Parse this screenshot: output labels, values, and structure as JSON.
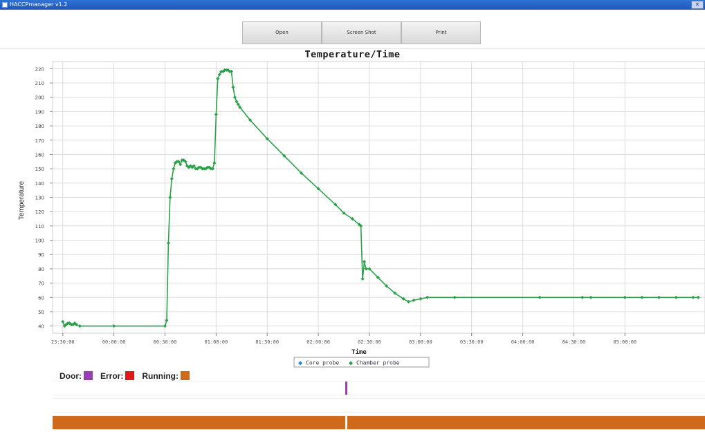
{
  "window": {
    "title": "HACCPmanager v1.2",
    "close_glyph": "✕"
  },
  "toolbar": {
    "open_label": "Open",
    "screenshot_label": "Screen Shot",
    "print_label": "Print"
  },
  "chart_data": {
    "type": "line",
    "title": "Temperature/Time",
    "xlabel": "Time",
    "ylabel": "Temperature",
    "y_ticks": [
      40,
      50,
      60,
      70,
      80,
      90,
      100,
      110,
      120,
      130,
      140,
      150,
      160,
      170,
      180,
      190,
      200,
      210,
      220
    ],
    "ylim": [
      35,
      225
    ],
    "x_tick_labels": [
      "23:30:00",
      "00:00:00",
      "00:30:00",
      "01:00:00",
      "01:30:00",
      "02:00:00",
      "02:30:00",
      "03:00:00",
      "03:30:00",
      "04:00:00",
      "04:30:00",
      "05:00:00"
    ],
    "x_tick_minutes": [
      -30,
      0,
      30,
      60,
      90,
      120,
      150,
      180,
      210,
      240,
      270,
      300
    ],
    "xlim_minutes": [
      -36,
      347
    ],
    "grid": true,
    "legend": {
      "placement": "bottom-center",
      "items": [
        {
          "name": "Core probe",
          "color": "#1e8ad6",
          "glyph": "◆"
        },
        {
          "name": "Chamber probe",
          "color": "#2aa24a",
          "glyph": "◆"
        }
      ]
    },
    "series": [
      {
        "name": "Chamber probe",
        "color": "#2aa24a",
        "points": [
          [
            -30,
            43
          ],
          [
            -29,
            40
          ],
          [
            -28,
            41
          ],
          [
            -27,
            42
          ],
          [
            -26,
            42
          ],
          [
            -25,
            41
          ],
          [
            -24,
            41
          ],
          [
            -23,
            42
          ],
          [
            -22,
            41
          ],
          [
            -20,
            40
          ],
          [
            0,
            40
          ],
          [
            30,
            40
          ],
          [
            31,
            44
          ],
          [
            32,
            98
          ],
          [
            33,
            130
          ],
          [
            34,
            143
          ],
          [
            35,
            150
          ],
          [
            36,
            154
          ],
          [
            37,
            155
          ],
          [
            38,
            155
          ],
          [
            39,
            153
          ],
          [
            40,
            156
          ],
          [
            41,
            156
          ],
          [
            42,
            155
          ],
          [
            43,
            152
          ],
          [
            44,
            151
          ],
          [
            45,
            152
          ],
          [
            46,
            151
          ],
          [
            47,
            152
          ],
          [
            48,
            150
          ],
          [
            49,
            150
          ],
          [
            50,
            151
          ],
          [
            51,
            151
          ],
          [
            52,
            150
          ],
          [
            53,
            150
          ],
          [
            54,
            150
          ],
          [
            55,
            151
          ],
          [
            56,
            151
          ],
          [
            57,
            150
          ],
          [
            58,
            150
          ],
          [
            59,
            154
          ],
          [
            60,
            188
          ],
          [
            61,
            213
          ],
          [
            62,
            216
          ],
          [
            63,
            218
          ],
          [
            64,
            218
          ],
          [
            65,
            219
          ],
          [
            66,
            219
          ],
          [
            67,
            219
          ],
          [
            68,
            218
          ],
          [
            69,
            218
          ],
          [
            70,
            207
          ],
          [
            71,
            200
          ],
          [
            72,
            197
          ],
          [
            73,
            195
          ],
          [
            74,
            193
          ],
          [
            80,
            184
          ],
          [
            90,
            171
          ],
          [
            100,
            159
          ],
          [
            110,
            147
          ],
          [
            120,
            136
          ],
          [
            130,
            125
          ],
          [
            135,
            119
          ],
          [
            140,
            115
          ],
          [
            144,
            111
          ],
          [
            145,
            110
          ],
          [
            146,
            73
          ],
          [
            147,
            85
          ],
          [
            148,
            80
          ],
          [
            150,
            80
          ],
          [
            155,
            74
          ],
          [
            160,
            68
          ],
          [
            165,
            63
          ],
          [
            170,
            59
          ],
          [
            173,
            57
          ],
          [
            176,
            58
          ],
          [
            180,
            59
          ],
          [
            184,
            60
          ],
          [
            200,
            60
          ],
          [
            250,
            60
          ],
          [
            275,
            60
          ],
          [
            280,
            60
          ],
          [
            300,
            60
          ],
          [
            310,
            60
          ],
          [
            320,
            60
          ],
          [
            330,
            60
          ],
          [
            340,
            60
          ],
          [
            343,
            60
          ]
        ]
      }
    ]
  },
  "status": {
    "door_label": "Door:",
    "error_label": "Error:",
    "running_label": "Running:",
    "door_color": "#9a3fb0",
    "error_color": "#e0181c",
    "running_color": "#cf6a1c",
    "door_events_minutes": [
      [
        136,
        137
      ]
    ],
    "error_events_minutes": [],
    "running_intervals_minutes": [
      [
        -36,
        136
      ],
      [
        137,
        347
      ]
    ]
  }
}
